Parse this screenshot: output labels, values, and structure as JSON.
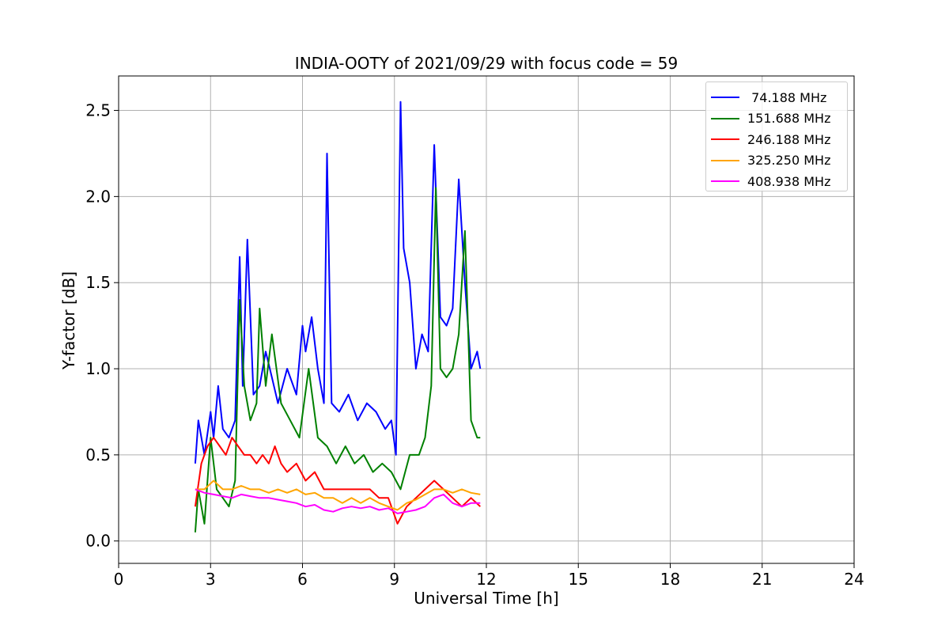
{
  "chart_data": {
    "type": "line",
    "title": "INDIA-OOTY of 2021/09/29 with focus code = 59",
    "xlabel": "Universal Time [h]",
    "ylabel": "Y-factor [dB]",
    "xlim": [
      0,
      24
    ],
    "ylim": [
      -0.13,
      2.7
    ],
    "xticks": [
      0,
      3,
      6,
      9,
      12,
      15,
      18,
      21,
      24
    ],
    "xtick_labels": [
      "0",
      "3",
      "6",
      "9",
      "12",
      "15",
      "18",
      "21",
      "24"
    ],
    "yticks": [
      0.0,
      0.5,
      1.0,
      1.5,
      2.0,
      2.5
    ],
    "ytick_labels": [
      "0.0",
      "0.5",
      "1.0",
      "1.5",
      "2.0",
      "2.5"
    ],
    "grid": true,
    "legend_position": "top-right",
    "series": [
      {
        "name": " 74.188 MHz",
        "color": "#0000ff",
        "x": [
          2.5,
          2.6,
          2.8,
          3.0,
          3.1,
          3.25,
          3.4,
          3.6,
          3.8,
          3.95,
          4.05,
          4.2,
          4.4,
          4.6,
          4.8,
          5.0,
          5.2,
          5.5,
          5.8,
          6.0,
          6.1,
          6.3,
          6.5,
          6.7,
          6.8,
          6.95,
          7.2,
          7.5,
          7.8,
          8.1,
          8.4,
          8.7,
          8.9,
          9.05,
          9.2,
          9.3,
          9.5,
          9.7,
          9.9,
          10.1,
          10.3,
          10.5,
          10.7,
          10.9,
          11.1,
          11.3,
          11.5,
          11.7,
          11.8
        ],
        "y": [
          0.45,
          0.7,
          0.5,
          0.75,
          0.6,
          0.9,
          0.65,
          0.6,
          0.7,
          1.65,
          0.9,
          1.75,
          0.85,
          0.9,
          1.1,
          0.95,
          0.8,
          1.0,
          0.85,
          1.25,
          1.1,
          1.3,
          1.0,
          0.8,
          2.25,
          0.8,
          0.75,
          0.85,
          0.7,
          0.8,
          0.75,
          0.65,
          0.7,
          0.5,
          2.55,
          1.7,
          1.5,
          1.0,
          1.2,
          1.1,
          2.3,
          1.3,
          1.25,
          1.35,
          2.1,
          1.5,
          1.0,
          1.1,
          1.0
        ]
      },
      {
        "name": "151.688 MHz",
        "color": "#008000",
        "x": [
          2.5,
          2.6,
          2.8,
          3.0,
          3.2,
          3.4,
          3.6,
          3.8,
          3.95,
          4.1,
          4.3,
          4.5,
          4.6,
          4.8,
          5.0,
          5.3,
          5.6,
          5.9,
          6.2,
          6.5,
          6.8,
          7.1,
          7.4,
          7.7,
          8.0,
          8.3,
          8.6,
          8.9,
          9.2,
          9.5,
          9.8,
          10.0,
          10.2,
          10.35,
          10.5,
          10.7,
          10.9,
          11.1,
          11.3,
          11.5,
          11.7,
          11.8
        ],
        "y": [
          0.05,
          0.3,
          0.1,
          0.6,
          0.3,
          0.25,
          0.2,
          0.35,
          1.4,
          0.9,
          0.7,
          0.8,
          1.35,
          0.9,
          1.2,
          0.8,
          0.7,
          0.6,
          1.0,
          0.6,
          0.55,
          0.45,
          0.55,
          0.45,
          0.5,
          0.4,
          0.45,
          0.4,
          0.3,
          0.5,
          0.5,
          0.6,
          0.9,
          2.05,
          1.0,
          0.95,
          1.0,
          1.2,
          1.8,
          0.7,
          0.6,
          0.6
        ]
      },
      {
        "name": "246.188 MHz",
        "color": "#ff0000",
        "x": [
          2.5,
          2.7,
          2.9,
          3.1,
          3.3,
          3.5,
          3.7,
          3.9,
          4.1,
          4.3,
          4.5,
          4.7,
          4.9,
          5.1,
          5.3,
          5.5,
          5.8,
          6.1,
          6.4,
          6.7,
          7.0,
          7.3,
          7.6,
          7.9,
          8.2,
          8.5,
          8.8,
          9.1,
          9.4,
          9.7,
          10.0,
          10.3,
          10.6,
          10.9,
          11.2,
          11.5,
          11.8
        ],
        "y": [
          0.2,
          0.45,
          0.55,
          0.6,
          0.55,
          0.5,
          0.6,
          0.55,
          0.5,
          0.5,
          0.45,
          0.5,
          0.45,
          0.55,
          0.45,
          0.4,
          0.45,
          0.35,
          0.4,
          0.3,
          0.3,
          0.3,
          0.3,
          0.3,
          0.3,
          0.25,
          0.25,
          0.1,
          0.2,
          0.25,
          0.3,
          0.35,
          0.3,
          0.25,
          0.2,
          0.25,
          0.2
        ]
      },
      {
        "name": "325.250 MHz",
        "color": "#ffa500",
        "x": [
          2.5,
          2.8,
          3.1,
          3.4,
          3.7,
          4.0,
          4.3,
          4.6,
          4.9,
          5.2,
          5.5,
          5.8,
          6.1,
          6.4,
          6.7,
          7.0,
          7.3,
          7.6,
          7.9,
          8.2,
          8.5,
          8.8,
          9.1,
          9.4,
          9.7,
          10.0,
          10.3,
          10.6,
          10.9,
          11.2,
          11.5,
          11.8
        ],
        "y": [
          0.3,
          0.3,
          0.35,
          0.3,
          0.3,
          0.32,
          0.3,
          0.3,
          0.28,
          0.3,
          0.28,
          0.3,
          0.27,
          0.28,
          0.25,
          0.25,
          0.22,
          0.25,
          0.22,
          0.25,
          0.22,
          0.2,
          0.18,
          0.22,
          0.24,
          0.27,
          0.3,
          0.3,
          0.28,
          0.3,
          0.28,
          0.27
        ]
      },
      {
        "name": "408.938 MHz",
        "color": "#ff00ff",
        "x": [
          2.5,
          2.8,
          3.1,
          3.4,
          3.7,
          4.0,
          4.3,
          4.6,
          4.9,
          5.2,
          5.5,
          5.8,
          6.1,
          6.4,
          6.7,
          7.0,
          7.3,
          7.6,
          7.9,
          8.2,
          8.5,
          8.8,
          9.1,
          9.4,
          9.7,
          10.0,
          10.3,
          10.6,
          10.9,
          11.2,
          11.5,
          11.8
        ],
        "y": [
          0.3,
          0.28,
          0.27,
          0.26,
          0.25,
          0.27,
          0.26,
          0.25,
          0.25,
          0.24,
          0.23,
          0.22,
          0.2,
          0.21,
          0.18,
          0.17,
          0.19,
          0.2,
          0.19,
          0.2,
          0.18,
          0.19,
          0.16,
          0.17,
          0.18,
          0.2,
          0.25,
          0.27,
          0.22,
          0.2,
          0.22,
          0.22
        ]
      }
    ]
  }
}
